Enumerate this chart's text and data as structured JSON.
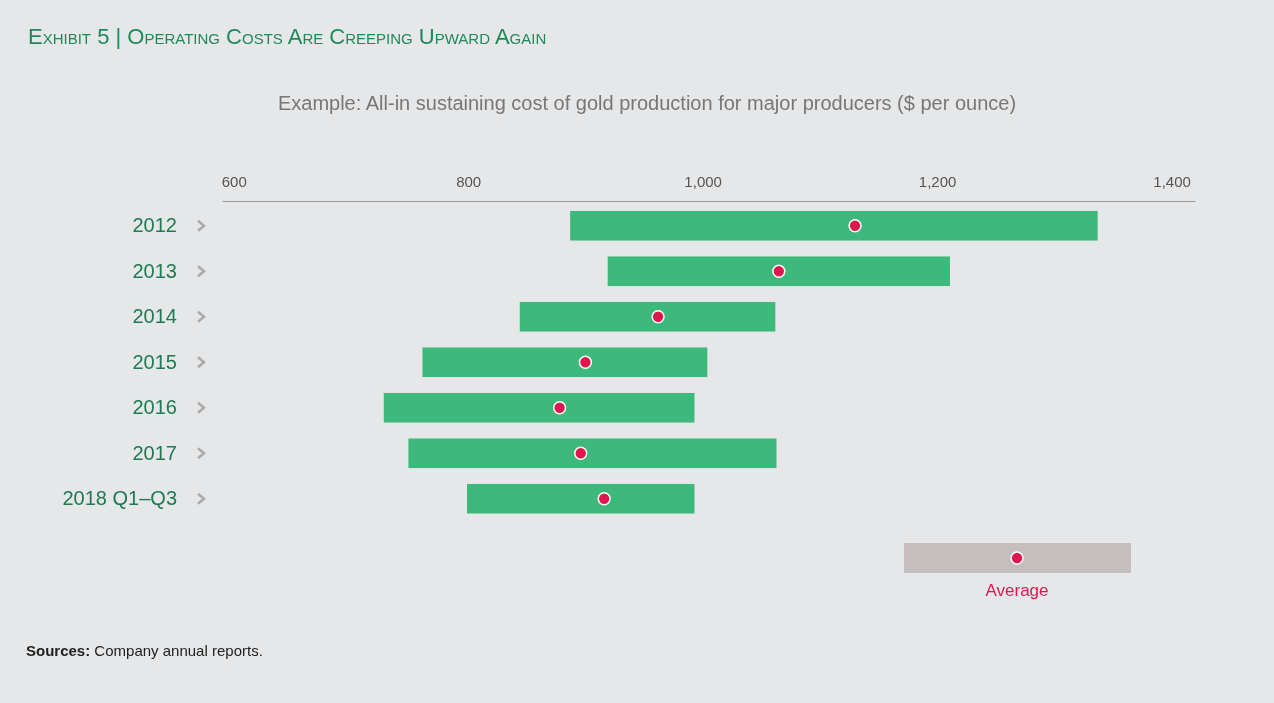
{
  "chart_data": {
    "type": "bar",
    "orientation": "horizontal",
    "title": "Exhibit 5 | Operating Costs Are Creeping Upward Again",
    "subtitle": "Example: All-in sustaining cost of gold production for major producers ($ per ounce)",
    "categories": [
      "2012",
      "2013",
      "2014",
      "2015",
      "2016",
      "2017",
      "2018 Q1–Q3"
    ],
    "series": [
      {
        "color": "#3dba7b",
        "base": [
          887,
          919,
          844,
          761,
          728,
          749,
          799
        ],
        "values": [
          450,
          292,
          218,
          243,
          265,
          314,
          194
        ]
      },
      {
        "type": "scatter",
        "name": "Average",
        "color": "#e0174f",
        "values": [
          1130,
          1065,
          962,
          900,
          878,
          896,
          916
        ]
      }
    ],
    "xlim": [
      590,
      1420
    ],
    "xticks": [
      600,
      800,
      {
        "value": 1000,
        "label": "1,000"
      },
      {
        "value": 1200,
        "label": "1,200"
      },
      {
        "value": 1400,
        "label": "1,400"
      }
    ],
    "legend": "bottom right",
    "marker": "circle",
    "annotations": [
      "Sources: Company annual reports."
    ]
  }
}
